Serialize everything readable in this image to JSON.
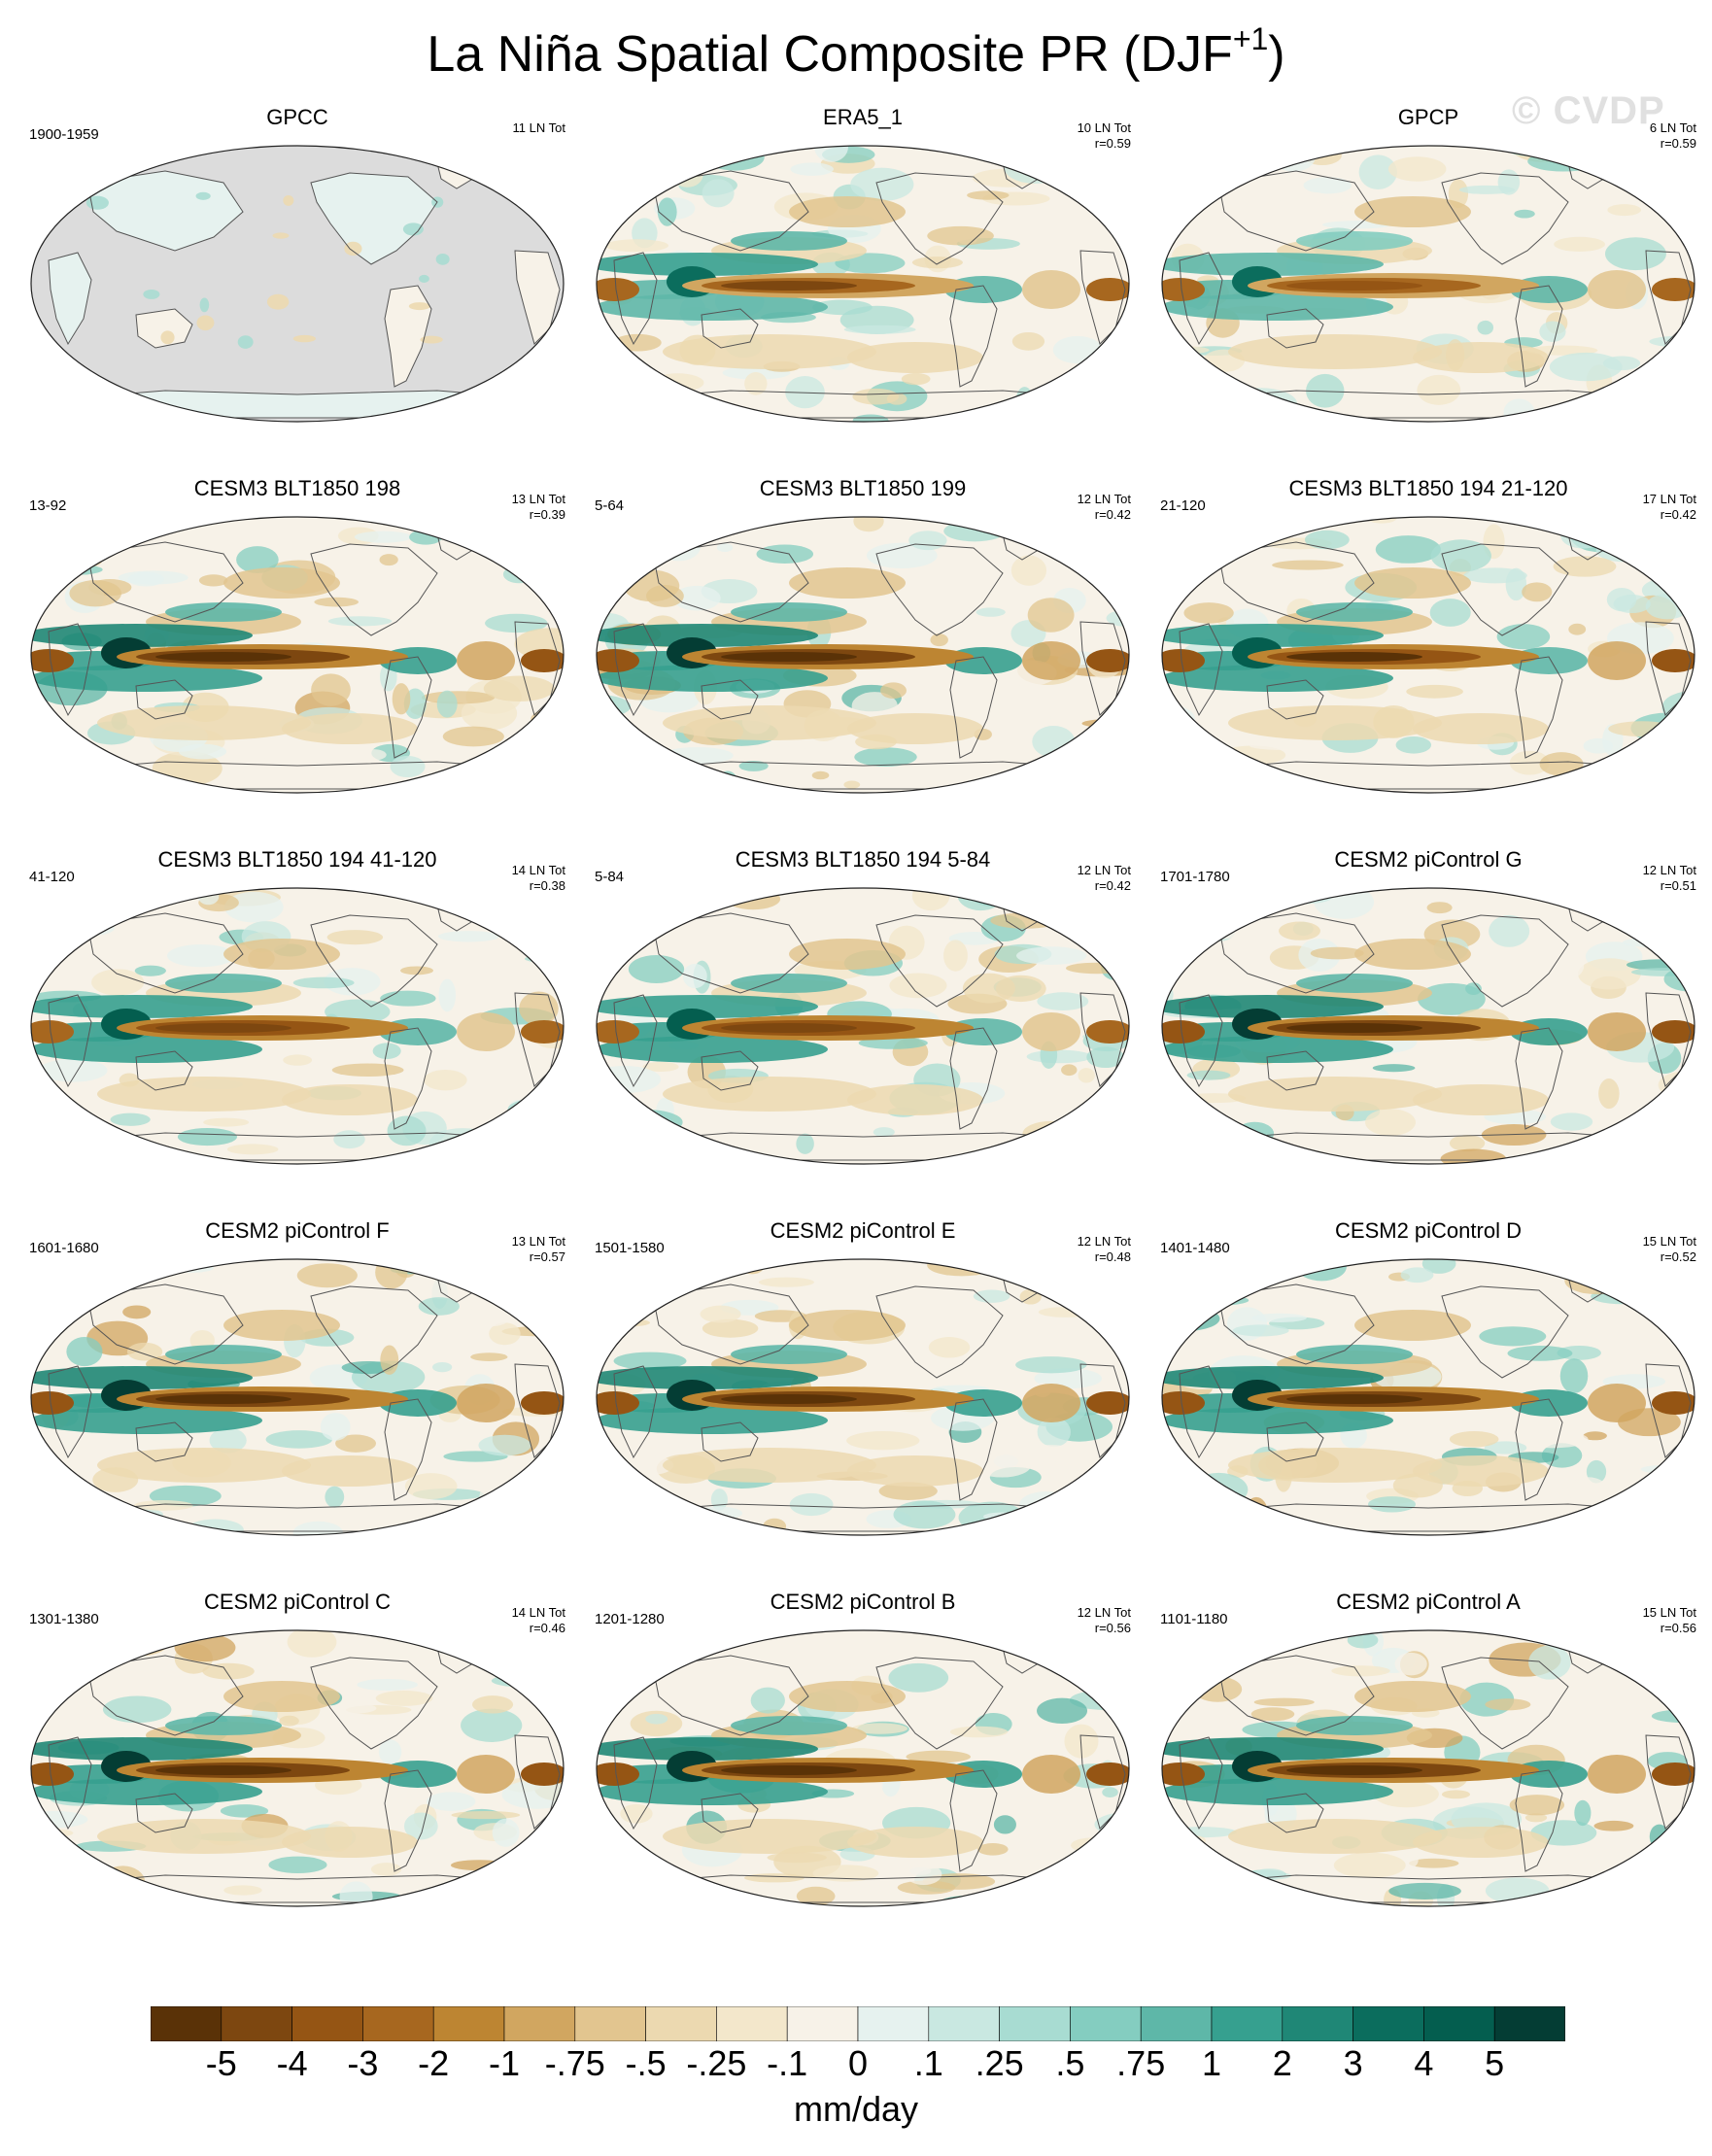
{
  "figure": {
    "title_main": "La Niña Spatial Composite PR (DJF",
    "title_sup": "+1",
    "title_close": ")",
    "watermark": "© CVDP"
  },
  "colors": {
    "land_missing": "#dcdcdc",
    "coast": "#555555",
    "scale": [
      "#5a3207",
      "#7d4710",
      "#955514",
      "#a7671f",
      "#bd8532",
      "#d1a660",
      "#e2c58f",
      "#ecd9b0",
      "#f3e7cb",
      "#f7f2e8",
      "#e6f2ef",
      "#c9e8e1",
      "#a8dcd2",
      "#84cdc0",
      "#5eb7a8",
      "#36a08f",
      "#1f8776",
      "#0b6d5d",
      "#045e4f",
      "#043d34"
    ]
  },
  "colorbar": {
    "labels": [
      "-5",
      "-4",
      "-3",
      "-2",
      "-1",
      "-.75",
      "-.5",
      "-.25",
      "-.1",
      "0",
      ".1",
      ".25",
      ".5",
      ".75",
      "1",
      "2",
      "3",
      "4",
      "5"
    ],
    "units": "mm/day"
  },
  "panels": [
    {
      "title": "GPCC",
      "left": "1900-1959",
      "right1": "11 LN Tot",
      "right2": "",
      "strength": 0.0,
      "obs_only_land": true
    },
    {
      "title": "ERA5_1",
      "left": "",
      "right1": "10 LN Tot",
      "right2": "r=0.59",
      "strength": 0.85
    },
    {
      "title": "GPCP",
      "left": "",
      "right1": "6 LN Tot",
      "right2": "r=0.59",
      "strength": 0.8
    },
    {
      "title": "CESM3 BLT1850 198",
      "left": "13-92",
      "right1": "13 LN Tot",
      "right2": "r=0.39",
      "strength": 1.0
    },
    {
      "title": "CESM3 BLT1850 199",
      "left": "5-64",
      "right1": "12 LN Tot",
      "right2": "r=0.42",
      "strength": 1.0
    },
    {
      "title": "CESM3 BLT1850 194 21-120",
      "left": "21-120",
      "right1": "17 LN Tot",
      "right2": "r=0.42",
      "strength": 0.95
    },
    {
      "title": "CESM3 BLT1850 194 41-120",
      "left": "41-120",
      "right1": "14 LN Tot",
      "right2": "r=0.38",
      "strength": 0.9
    },
    {
      "title": "CESM3 BLT1850 194 5-84",
      "left": "5-84",
      "right1": "12 LN Tot",
      "right2": "r=0.42",
      "strength": 0.9
    },
    {
      "title": "CESM2 piControl G",
      "left": "1701-1780",
      "right1": "12 LN Tot",
      "right2": "r=0.51",
      "strength": 1.0
    },
    {
      "title": "CESM2 piControl F",
      "left": "1601-1680",
      "right1": "13 LN Tot",
      "right2": "r=0.57",
      "strength": 1.0
    },
    {
      "title": "CESM2 piControl E",
      "left": "1501-1580",
      "right1": "12 LN Tot",
      "right2": "r=0.48",
      "strength": 1.0
    },
    {
      "title": "CESM2 piControl D",
      "left": "1401-1480",
      "right1": "15 LN Tot",
      "right2": "r=0.52",
      "strength": 1.0
    },
    {
      "title": "CESM2 piControl C",
      "left": "1301-1380",
      "right1": "14 LN Tot",
      "right2": "r=0.46",
      "strength": 1.0
    },
    {
      "title": "CESM2 piControl B",
      "left": "1201-1280",
      "right1": "12 LN Tot",
      "right2": "r=0.56",
      "strength": 1.0
    },
    {
      "title": "CESM2 piControl A",
      "left": "1101-1180",
      "right1": "15 LN Tot",
      "right2": "r=0.56",
      "strength": 1.0
    }
  ]
}
